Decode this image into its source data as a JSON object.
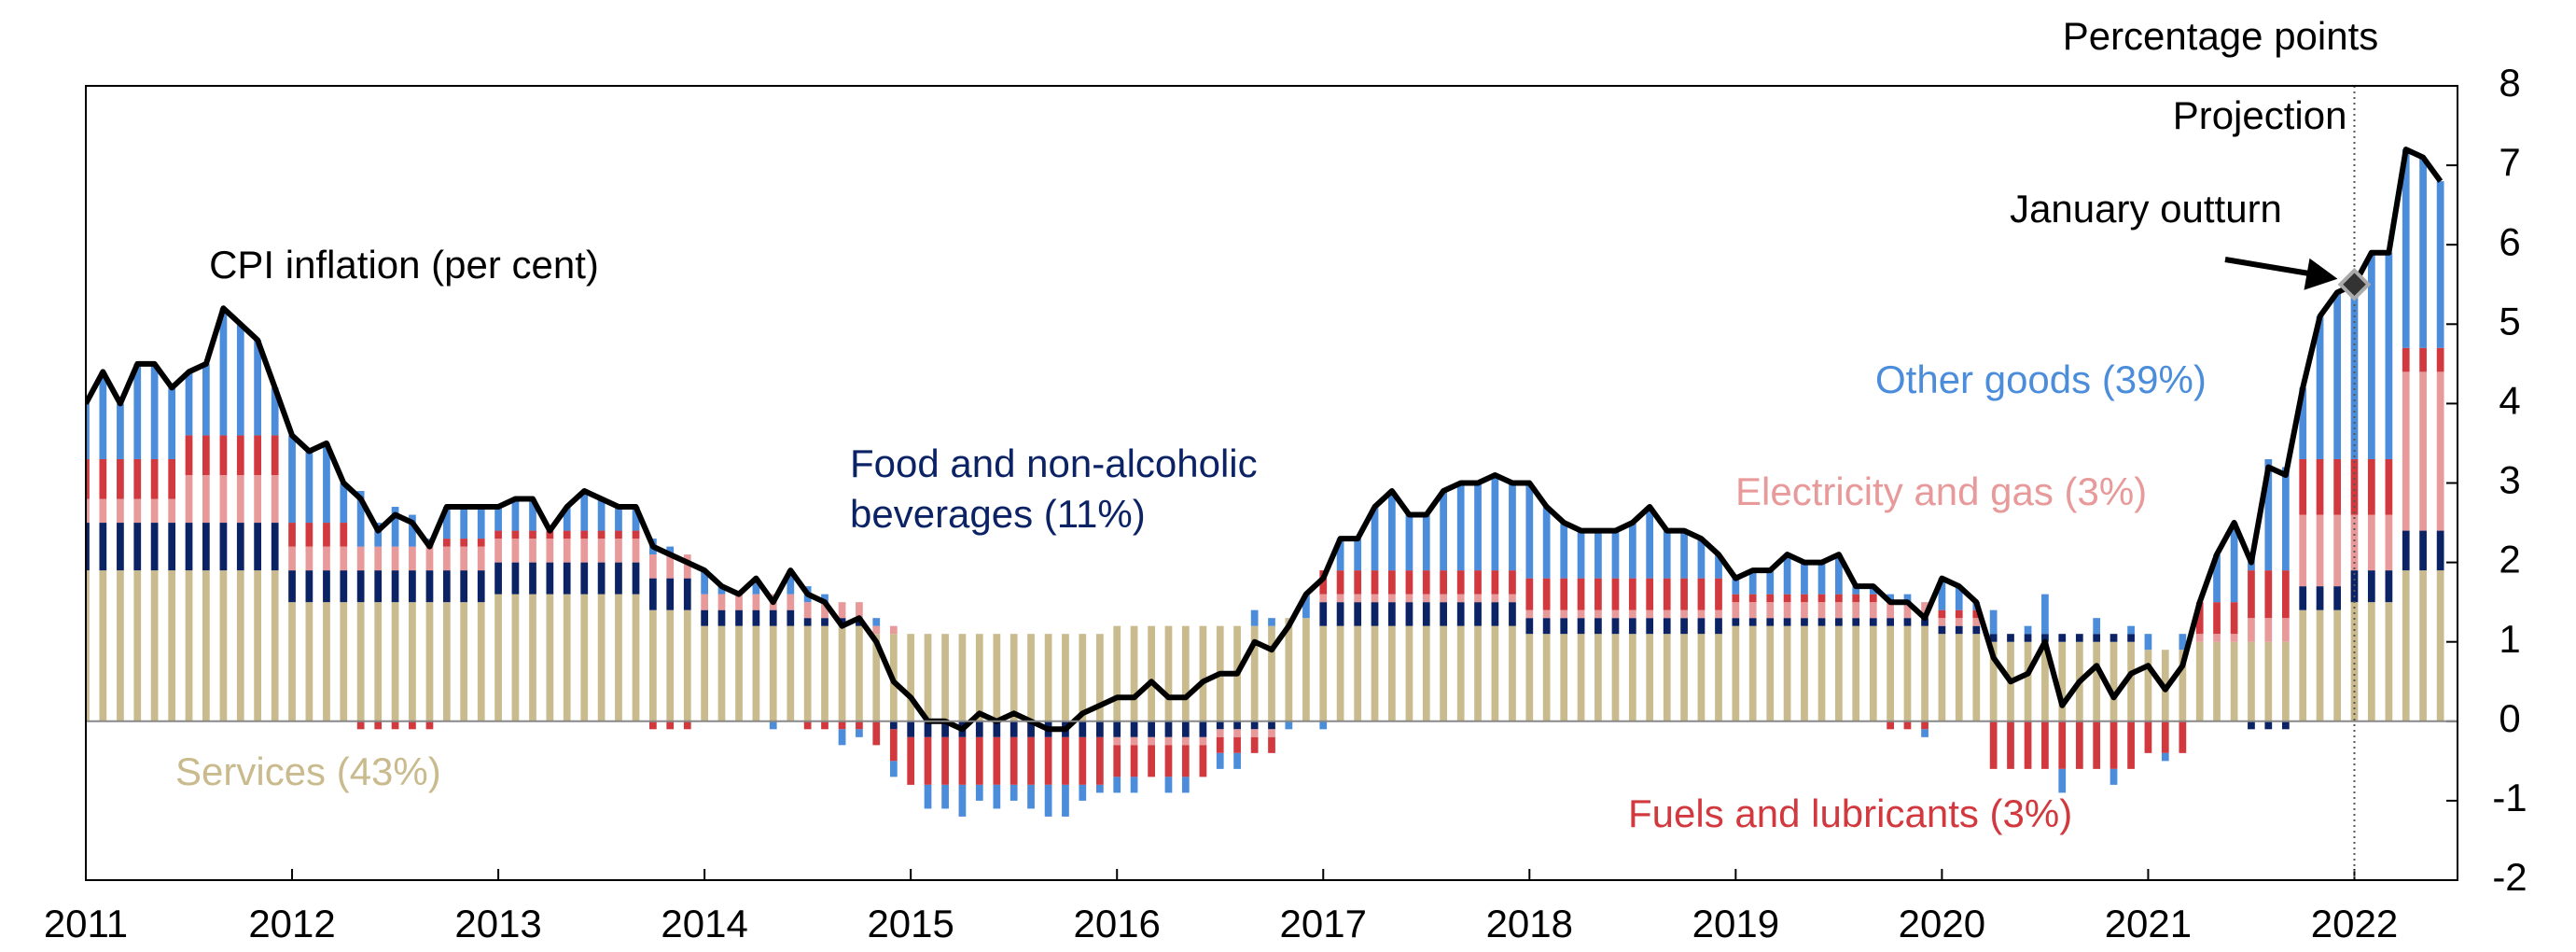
{
  "chart_data": {
    "type": "bar",
    "stacked": true,
    "y_label": "Percentage points",
    "xlim": [
      2011,
      2022.5
    ],
    "xticks": [
      2011,
      2012,
      2013,
      2014,
      2015,
      2016,
      2017,
      2018,
      2019,
      2020,
      2021,
      2022
    ],
    "ylim": [
      -2,
      8
    ],
    "yticks": [
      -2,
      -1,
      0,
      1,
      2,
      3,
      4,
      5,
      6,
      7,
      8
    ],
    "x": [
      2011,
      2011.083,
      2011.167,
      2011.25,
      2011.333,
      2011.417,
      2011.5,
      2011.583,
      2011.667,
      2011.75,
      2011.833,
      2011.917,
      2012,
      2012.083,
      2012.167,
      2012.25,
      2012.333,
      2012.417,
      2012.5,
      2012.583,
      2012.667,
      2012.75,
      2012.833,
      2012.917,
      2013,
      2013.083,
      2013.167,
      2013.25,
      2013.333,
      2013.417,
      2013.5,
      2013.583,
      2013.667,
      2013.75,
      2013.833,
      2013.917,
      2014,
      2014.083,
      2014.167,
      2014.25,
      2014.333,
      2014.417,
      2014.5,
      2014.583,
      2014.667,
      2014.75,
      2014.833,
      2014.917,
      2015,
      2015.083,
      2015.167,
      2015.25,
      2015.333,
      2015.417,
      2015.5,
      2015.583,
      2015.667,
      2015.75,
      2015.833,
      2015.917,
      2016,
      2016.083,
      2016.167,
      2016.25,
      2016.333,
      2016.417,
      2016.5,
      2016.583,
      2016.667,
      2016.75,
      2016.833,
      2016.917,
      2017,
      2017.083,
      2017.167,
      2017.25,
      2017.333,
      2017.417,
      2017.5,
      2017.583,
      2017.667,
      2017.75,
      2017.833,
      2017.917,
      2018,
      2018.083,
      2018.167,
      2018.25,
      2018.333,
      2018.417,
      2018.5,
      2018.583,
      2018.667,
      2018.75,
      2018.833,
      2018.917,
      2019,
      2019.083,
      2019.167,
      2019.25,
      2019.333,
      2019.417,
      2019.5,
      2019.583,
      2019.667,
      2019.75,
      2019.833,
      2019.917,
      2020,
      2020.083,
      2020.167,
      2020.25,
      2020.333,
      2020.417,
      2020.5,
      2020.583,
      2020.667,
      2020.75,
      2020.833,
      2020.917,
      2021,
      2021.083,
      2021.167,
      2021.25,
      2021.333,
      2021.417,
      2021.5,
      2021.583,
      2021.667,
      2021.75,
      2021.833,
      2021.917,
      2022,
      2022.083,
      2022.167,
      2022.25,
      2022.333,
      2022.417
    ],
    "series": [
      {
        "name": "Services (43%)",
        "color": "#c9bb8e",
        "values": [
          1.9,
          1.9,
          1.9,
          1.9,
          1.9,
          1.9,
          1.9,
          1.9,
          1.9,
          1.9,
          1.9,
          1.9,
          1.5,
          1.5,
          1.5,
          1.5,
          1.5,
          1.5,
          1.5,
          1.5,
          1.5,
          1.5,
          1.5,
          1.5,
          1.6,
          1.6,
          1.6,
          1.6,
          1.6,
          1.6,
          1.6,
          1.6,
          1.6,
          1.4,
          1.4,
          1.4,
          1.2,
          1.2,
          1.2,
          1.2,
          1.2,
          1.2,
          1.2,
          1.2,
          1.2,
          1.2,
          1.1,
          1.1,
          1.1,
          1.1,
          1.1,
          1.1,
          1.1,
          1.1,
          1.1,
          1.1,
          1.1,
          1.1,
          1.1,
          1.1,
          1.2,
          1.2,
          1.2,
          1.2,
          1.2,
          1.2,
          1.2,
          1.2,
          1.2,
          1.2,
          1.3,
          1.3,
          1.2,
          1.2,
          1.2,
          1.2,
          1.2,
          1.2,
          1.2,
          1.2,
          1.2,
          1.2,
          1.2,
          1.2,
          1.1,
          1.1,
          1.1,
          1.1,
          1.1,
          1.1,
          1.1,
          1.1,
          1.1,
          1.1,
          1.1,
          1.1,
          1.2,
          1.2,
          1.2,
          1.2,
          1.2,
          1.2,
          1.2,
          1.2,
          1.2,
          1.2,
          1.2,
          1.2,
          1.1,
          1.1,
          1.1,
          1.0,
          1.0,
          1.0,
          1.0,
          1.0,
          1.0,
          1.0,
          1.0,
          1.0,
          0.9,
          0.9,
          0.9,
          1.0,
          1.0,
          1.0,
          1.0,
          1.0,
          1.0,
          1.4,
          1.4,
          1.4,
          1.5,
          1.5,
          1.5,
          1.9,
          1.9,
          1.9
        ]
      },
      {
        "name": "Food and non-alcoholic beverages (11%)",
        "color": "#0b2265",
        "values": [
          0.6,
          0.6,
          0.6,
          0.6,
          0.6,
          0.6,
          0.6,
          0.6,
          0.6,
          0.6,
          0.6,
          0.6,
          0.4,
          0.4,
          0.4,
          0.4,
          0.4,
          0.4,
          0.4,
          0.4,
          0.4,
          0.4,
          0.4,
          0.4,
          0.4,
          0.4,
          0.4,
          0.4,
          0.4,
          0.4,
          0.4,
          0.4,
          0.4,
          0.4,
          0.4,
          0.4,
          0.2,
          0.2,
          0.2,
          0.2,
          0.2,
          0.2,
          0.1,
          0.1,
          0.1,
          0.1,
          0.0,
          -0.1,
          -0.2,
          -0.2,
          -0.2,
          -0.2,
          -0.2,
          -0.2,
          -0.2,
          -0.2,
          -0.2,
          -0.2,
          -0.2,
          -0.2,
          -0.2,
          -0.2,
          -0.2,
          -0.2,
          -0.2,
          -0.2,
          -0.1,
          -0.1,
          -0.1,
          -0.1,
          0.0,
          0.0,
          0.3,
          0.3,
          0.3,
          0.3,
          0.3,
          0.3,
          0.3,
          0.3,
          0.3,
          0.3,
          0.3,
          0.3,
          0.2,
          0.2,
          0.2,
          0.2,
          0.2,
          0.2,
          0.2,
          0.2,
          0.2,
          0.2,
          0.2,
          0.2,
          0.1,
          0.1,
          0.1,
          0.1,
          0.1,
          0.1,
          0.1,
          0.1,
          0.1,
          0.1,
          0.1,
          0.1,
          0.1,
          0.1,
          0.1,
          0.1,
          0.1,
          0.1,
          0.1,
          0.1,
          0.1,
          0.1,
          0.1,
          0.1,
          0.0,
          0.0,
          0.0,
          0.0,
          0.0,
          0.0,
          -0.1,
          -0.1,
          -0.1,
          0.3,
          0.3,
          0.3,
          0.4,
          0.4,
          0.4,
          0.5,
          0.5,
          0.5
        ]
      },
      {
        "name": "Electricity and gas (3%)",
        "color": "#e89a9a",
        "values": [
          0.3,
          0.3,
          0.3,
          0.3,
          0.3,
          0.3,
          0.6,
          0.6,
          0.6,
          0.6,
          0.6,
          0.6,
          0.3,
          0.3,
          0.3,
          0.3,
          0.3,
          0.3,
          0.3,
          0.3,
          0.3,
          0.3,
          0.3,
          0.3,
          0.3,
          0.3,
          0.3,
          0.3,
          0.3,
          0.3,
          0.3,
          0.3,
          0.3,
          0.3,
          0.3,
          0.3,
          0.2,
          0.2,
          0.2,
          0.2,
          0.2,
          0.2,
          0.2,
          0.2,
          0.2,
          0.2,
          0.1,
          0.1,
          0.0,
          0.0,
          0.0,
          0.0,
          0.0,
          0.0,
          0.0,
          0.0,
          0.0,
          0.0,
          0.0,
          0.0,
          -0.1,
          -0.1,
          -0.1,
          -0.1,
          -0.1,
          -0.1,
          -0.1,
          -0.1,
          -0.1,
          -0.1,
          0.0,
          0.0,
          0.1,
          0.1,
          0.1,
          0.1,
          0.1,
          0.1,
          0.1,
          0.1,
          0.1,
          0.1,
          0.1,
          0.1,
          0.1,
          0.1,
          0.1,
          0.1,
          0.1,
          0.1,
          0.1,
          0.1,
          0.1,
          0.1,
          0.1,
          0.1,
          0.2,
          0.2,
          0.2,
          0.2,
          0.2,
          0.2,
          0.2,
          0.2,
          0.2,
          0.2,
          0.2,
          0.2,
          0.1,
          0.1,
          0.1,
          0.0,
          0.0,
          0.0,
          0.0,
          0.0,
          0.0,
          0.0,
          0.0,
          0.0,
          0.0,
          0.0,
          0.0,
          0.1,
          0.1,
          0.1,
          0.3,
          0.3,
          0.3,
          0.9,
          0.9,
          0.9,
          0.7,
          0.7,
          0.7,
          2.0,
          2.0,
          2.0
        ]
      },
      {
        "name": "Fuels and lubricants (3%)",
        "color": "#d2393f",
        "values": [
          0.5,
          0.5,
          0.5,
          0.5,
          0.5,
          0.5,
          0.5,
          0.5,
          0.5,
          0.5,
          0.5,
          0.5,
          0.3,
          0.3,
          0.3,
          0.3,
          -0.1,
          -0.1,
          -0.1,
          -0.1,
          -0.1,
          0.1,
          0.1,
          0.1,
          0.1,
          0.1,
          0.1,
          0.1,
          0.1,
          0.1,
          0.1,
          0.1,
          0.1,
          -0.1,
          -0.1,
          -0.1,
          0.0,
          0.0,
          0.0,
          0.0,
          0.0,
          0.0,
          -0.1,
          -0.1,
          -0.1,
          -0.1,
          -0.3,
          -0.4,
          -0.6,
          -0.6,
          -0.6,
          -0.6,
          -0.6,
          -0.6,
          -0.6,
          -0.6,
          -0.6,
          -0.6,
          -0.6,
          -0.6,
          -0.4,
          -0.4,
          -0.4,
          -0.4,
          -0.4,
          -0.4,
          -0.2,
          -0.2,
          -0.2,
          -0.2,
          0.0,
          0.0,
          0.3,
          0.3,
          0.3,
          0.3,
          0.3,
          0.3,
          0.3,
          0.3,
          0.3,
          0.3,
          0.3,
          0.3,
          0.4,
          0.4,
          0.4,
          0.4,
          0.4,
          0.4,
          0.4,
          0.4,
          0.4,
          0.4,
          0.4,
          0.4,
          0.1,
          0.1,
          0.1,
          0.1,
          0.1,
          0.1,
          0.1,
          0.1,
          0.1,
          -0.1,
          -0.1,
          -0.1,
          0.1,
          0.1,
          0.1,
          -0.6,
          -0.6,
          -0.6,
          -0.6,
          -0.6,
          -0.6,
          -0.6,
          -0.6,
          -0.6,
          -0.4,
          -0.4,
          -0.4,
          0.4,
          0.4,
          0.4,
          0.6,
          0.6,
          0.6,
          0.7,
          0.7,
          0.7,
          0.7,
          0.7,
          0.7,
          0.3,
          0.3,
          0.3
        ]
      },
      {
        "name": "Other goods (39%)",
        "color": "#4b8ddb",
        "values": [
          0.7,
          1.1,
          0.7,
          1.2,
          1.2,
          0.9,
          0.8,
          0.9,
          1.6,
          1.4,
          1.2,
          0.6,
          1.1,
          0.9,
          1.0,
          0.5,
          0.7,
          0.3,
          0.5,
          0.4,
          0.1,
          0.4,
          0.4,
          0.4,
          0.3,
          0.4,
          0.4,
          0.0,
          0.3,
          0.5,
          0.4,
          0.3,
          0.3,
          0.2,
          0.1,
          0.0,
          0.3,
          0.1,
          0.0,
          0.2,
          -0.1,
          0.3,
          0.2,
          0.1,
          -0.2,
          -0.1,
          0.1,
          -0.2,
          0.0,
          -0.3,
          -0.3,
          -0.4,
          -0.2,
          -0.3,
          -0.2,
          -0.3,
          -0.4,
          -0.4,
          -0.2,
          -0.1,
          -0.2,
          -0.2,
          0.0,
          -0.2,
          -0.2,
          0.0,
          -0.2,
          -0.2,
          0.2,
          0.1,
          -0.1,
          0.3,
          -0.1,
          0.4,
          0.4,
          0.8,
          1.0,
          0.7,
          0.7,
          1.0,
          1.1,
          1.1,
          1.2,
          1.1,
          1.2,
          0.9,
          0.7,
          0.6,
          0.6,
          0.6,
          0.7,
          0.9,
          0.6,
          0.6,
          0.5,
          0.3,
          0.2,
          0.3,
          0.3,
          0.5,
          0.4,
          0.4,
          0.5,
          0.1,
          0.1,
          0.1,
          0.1,
          -0.1,
          0.4,
          0.3,
          0.1,
          0.3,
          0.0,
          0.1,
          0.5,
          -0.3,
          0.0,
          0.2,
          -0.2,
          0.1,
          0.2,
          -0.1,
          0.2,
          0.0,
          0.6,
          1.0,
          0.2,
          1.4,
          1.3,
          0.9,
          1.8,
          2.1,
          2.2,
          2.6,
          2.6,
          2.5,
          2.4,
          2.1
        ]
      }
    ],
    "line": {
      "name": "CPI inflation (per cent)",
      "color": "#000000",
      "values": [
        4.0,
        4.4,
        4.0,
        4.5,
        4.5,
        4.2,
        4.4,
        4.5,
        5.2,
        5.0,
        4.8,
        4.2,
        3.6,
        3.4,
        3.5,
        3.0,
        2.8,
        2.4,
        2.6,
        2.5,
        2.2,
        2.7,
        2.7,
        2.7,
        2.7,
        2.8,
        2.8,
        2.4,
        2.7,
        2.9,
        2.8,
        2.7,
        2.7,
        2.2,
        2.1,
        2.0,
        1.9,
        1.7,
        1.6,
        1.8,
        1.5,
        1.9,
        1.6,
        1.5,
        1.2,
        1.3,
        1.0,
        0.5,
        0.3,
        0.0,
        0.0,
        -0.1,
        0.1,
        0.0,
        0.1,
        0.0,
        -0.1,
        -0.1,
        0.1,
        0.2,
        0.3,
        0.3,
        0.5,
        0.3,
        0.3,
        0.5,
        0.6,
        0.6,
        1.0,
        0.9,
        1.2,
        1.6,
        1.8,
        2.3,
        2.3,
        2.7,
        2.9,
        2.6,
        2.6,
        2.9,
        3.0,
        3.0,
        3.1,
        3.0,
        3.0,
        2.7,
        2.5,
        2.4,
        2.4,
        2.4,
        2.5,
        2.7,
        2.4,
        2.4,
        2.3,
        2.1,
        1.8,
        1.9,
        1.9,
        2.1,
        2.0,
        2.0,
        2.1,
        1.7,
        1.7,
        1.5,
        1.5,
        1.3,
        1.8,
        1.7,
        1.5,
        0.8,
        0.5,
        0.6,
        1.0,
        0.2,
        0.5,
        0.7,
        0.3,
        0.6,
        0.7,
        0.4,
        0.7,
        1.5,
        2.1,
        2.5,
        2.0,
        3.2,
        3.1,
        4.2,
        5.1,
        5.4,
        5.5,
        5.9,
        5.9,
        7.2,
        7.1,
        6.8
      ]
    },
    "projection": {
      "label": "Projection",
      "x": 2022
    },
    "outturn": {
      "label": "January outturn",
      "x": 2022,
      "y": 5.5
    }
  }
}
